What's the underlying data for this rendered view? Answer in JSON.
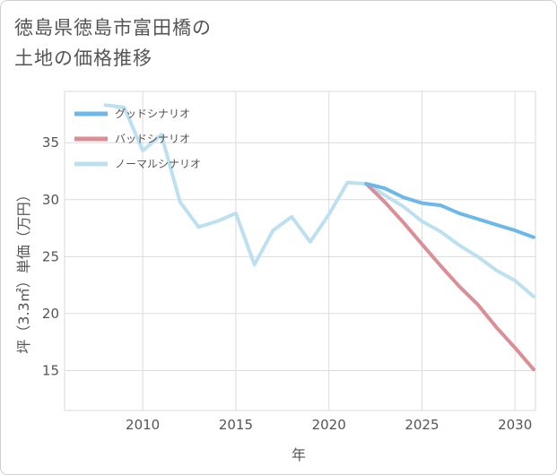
{
  "chart_data": {
    "type": "line",
    "title_lines": [
      "徳島県徳島市富田橋の",
      "土地の価格推移"
    ],
    "xlabel": "年",
    "ylabel": "坪（3.3㎡）単価（万円）",
    "xlim": [
      2005.8,
      2031.1
    ],
    "ylim": [
      11.5,
      39.5
    ],
    "xticks": [
      2010,
      2015,
      2020,
      2025,
      2030
    ],
    "yticks": [
      15,
      20,
      25,
      30,
      35
    ],
    "grid": true,
    "legend_position": "top-left",
    "series": [
      {
        "name": "グッドシナリオ",
        "color": "#6cb8ea",
        "x": [
          2022,
          2023,
          2024,
          2025,
          2026,
          2027,
          2028,
          2029,
          2030,
          2031
        ],
        "y": [
          31.4,
          31.0,
          30.2,
          29.7,
          29.5,
          28.8,
          28.3,
          27.8,
          27.3,
          26.7
        ]
      },
      {
        "name": "バッドシナリオ",
        "color": "#dc8e96",
        "x": [
          2022,
          2023,
          2024,
          2025,
          2026,
          2027,
          2028,
          2029,
          2030,
          2031
        ],
        "y": [
          31.4,
          29.8,
          28.0,
          26.1,
          24.2,
          22.4,
          20.8,
          18.8,
          17.0,
          15.1
        ]
      },
      {
        "name": "ノーマルシナリオ",
        "color": "#bde0f0",
        "x": [
          2008,
          2009,
          2010,
          2011,
          2012,
          2013,
          2014,
          2015,
          2016,
          2017,
          2018,
          2019,
          2020,
          2021,
          2022,
          2023,
          2024,
          2025,
          2026,
          2027,
          2028,
          2029,
          2030,
          2031
        ],
        "y": [
          38.3,
          38.1,
          34.3,
          35.7,
          29.8,
          27.6,
          28.1,
          28.8,
          24.3,
          27.3,
          28.5,
          26.3,
          28.7,
          31.5,
          31.4,
          30.4,
          29.4,
          28.1,
          27.2,
          26.0,
          25.0,
          23.8,
          22.9,
          21.5
        ]
      }
    ]
  }
}
